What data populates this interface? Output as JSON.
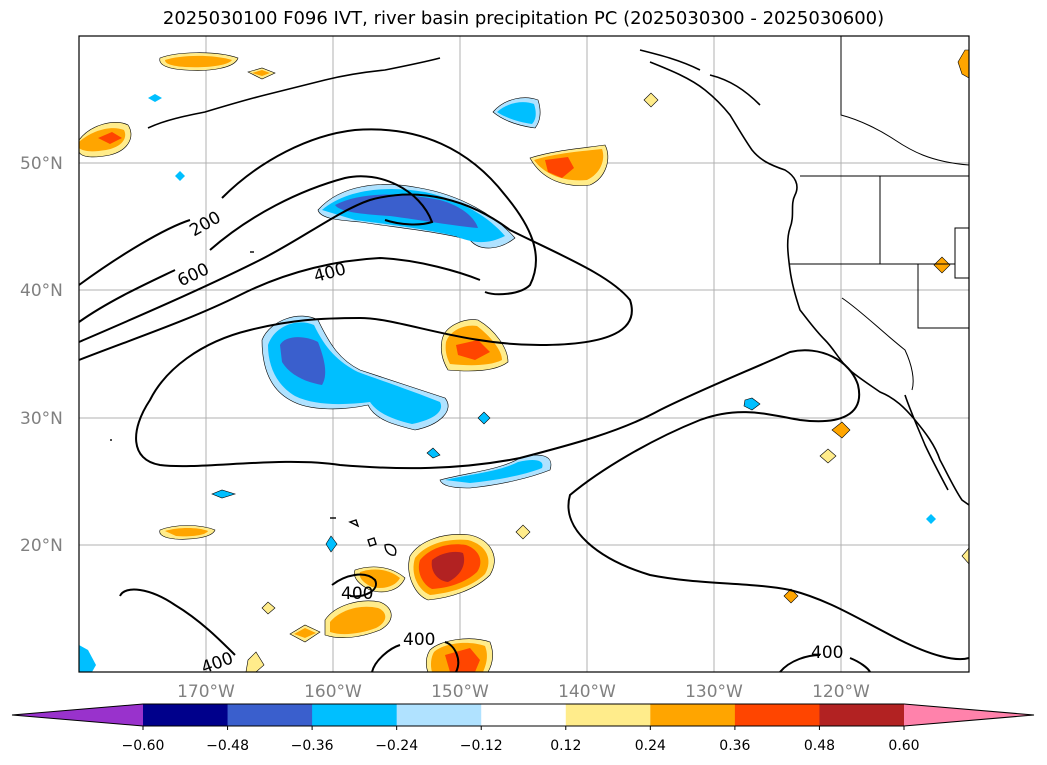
{
  "title": "2025030100 F096 IVT, river basin precipitation PC (2025030300 - 2025030600)",
  "lat_labels": [
    "50°N",
    "40°N",
    "30°N",
    "20°N"
  ],
  "lon_labels": [
    "170°W",
    "160°W",
    "150°W",
    "140°W",
    "130°W",
    "120°W"
  ],
  "contour_labels": [
    "200",
    "600",
    "400",
    "400",
    "400",
    "400",
    "400"
  ],
  "colorbar": {
    "ticks": [
      "−0.60",
      "−0.48",
      "−0.36",
      "−0.24",
      "−0.12",
      "0.12",
      "0.24",
      "0.36",
      "0.48",
      "0.60"
    ],
    "colors": [
      "#9932cc",
      "#00008b",
      "#3a5fcd",
      "#00bfff",
      "#b0e2ff",
      "#ffffff",
      "#ffec8b",
      "#ffa500",
      "#ff4500",
      "#b22222",
      "#ff82ab"
    ]
  },
  "fill_colors": {
    "pos1": "#ffec8b",
    "pos2": "#ffa500",
    "pos3": "#ff4500",
    "pos4": "#b22222",
    "neg1": "#b0e2ff",
    "neg2": "#00bfff",
    "neg3": "#3a5fcd"
  }
}
